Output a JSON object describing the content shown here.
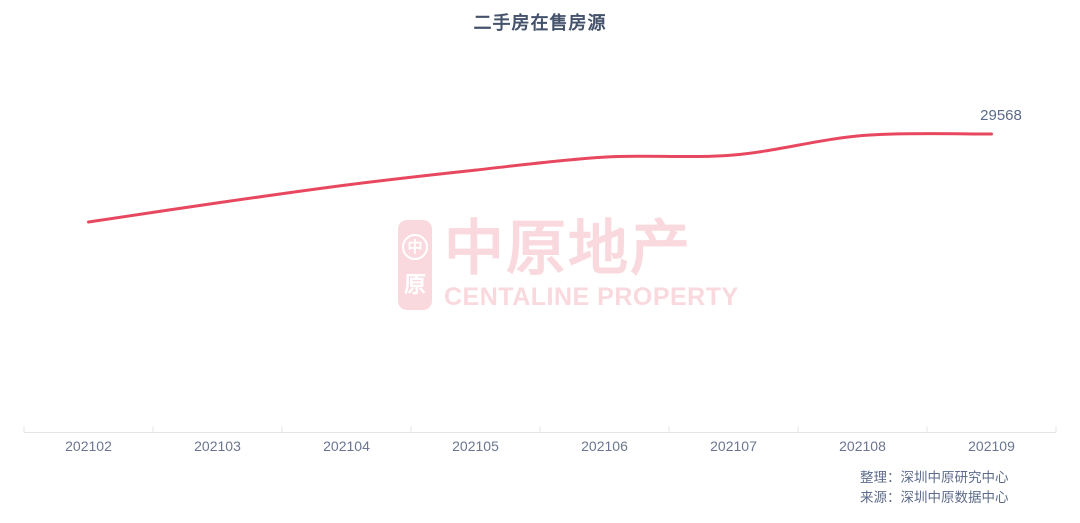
{
  "title": "二手房在售房源",
  "chart_data": {
    "type": "line",
    "title": "二手房在售房源",
    "categories": [
      "202102",
      "202103",
      "202104",
      "202105",
      "202106",
      "202107",
      "202108",
      "202109"
    ],
    "series": [
      {
        "name": "二手房在售房源",
        "values": [
          24500,
          25600,
          26630,
          27490,
          28240,
          28360,
          29480,
          29568
        ]
      }
    ],
    "values_estimated_except_last": true,
    "end_label": "29568",
    "xlabel": "",
    "ylabel": "",
    "ylim_estimated": [
      24000,
      30000
    ],
    "grid": false,
    "legend": false,
    "y_axis_shown": false,
    "line_smooth": true
  },
  "colors": {
    "line": "#e8485f",
    "title_text": "#44526b",
    "axis_text": "#6a7691",
    "end_label_text": "#5a6a88",
    "footer_text": "#5d6c8c",
    "axis_line": "#e5e5e5",
    "watermark_pink": "#f9d9de"
  },
  "watermark": {
    "seal_top": "中",
    "seal_bottom": "原",
    "text": "中原地产",
    "subtext": "CENTALINE PROPERTY"
  },
  "footer": {
    "line1": "整理：深圳中原研究中心",
    "line2": "来源：深圳中原数据中心"
  }
}
